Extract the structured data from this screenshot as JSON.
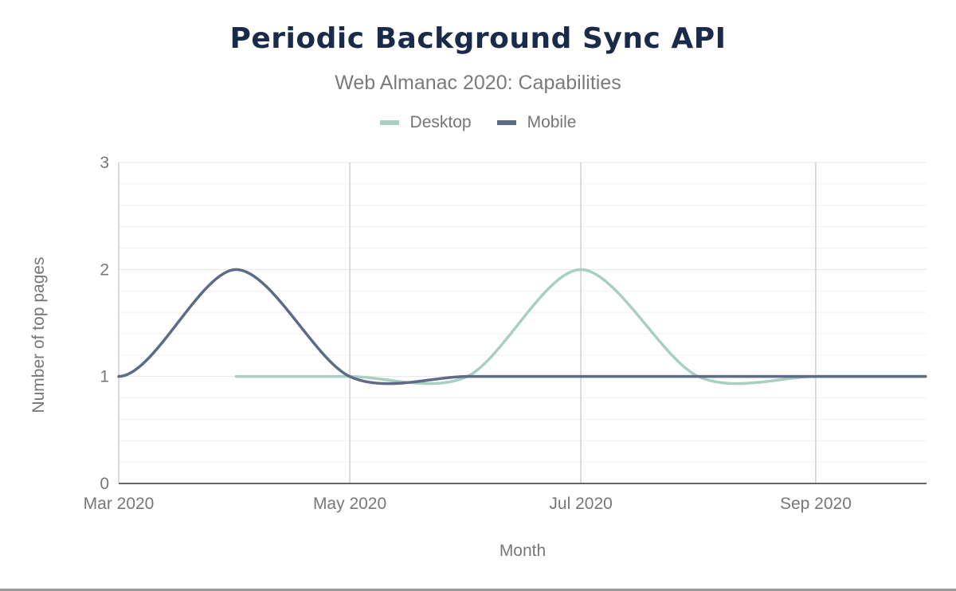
{
  "header": {
    "title": "Periodic Background Sync API",
    "subtitle": "Web Almanac 2020: Capabilities"
  },
  "colors": {
    "desktop": "#a8cfc0",
    "mobile": "#5d6b86",
    "title": "#1a2b49"
  },
  "chart_data": {
    "type": "line",
    "title": "Periodic Background Sync API",
    "subtitle": "Web Almanac 2020: Capabilities",
    "xlabel": "Month",
    "ylabel": "Number of top pages",
    "x_tick_labels": [
      "Mar 2020",
      "May 2020",
      "Jul 2020",
      "Sep 2020"
    ],
    "y_tick_labels": [
      "0",
      "1",
      "2",
      "3"
    ],
    "ylim": [
      0,
      3
    ],
    "xlim": [
      "2020-03-01",
      "2020-09-30"
    ],
    "smooth": true,
    "grid": true,
    "legend_position": "top-center",
    "series": [
      {
        "name": "Desktop",
        "color": "#a8cfc0",
        "x": [
          "2020-04-01",
          "2020-05-01",
          "2020-06-01",
          "2020-07-01",
          "2020-08-01",
          "2020-09-01",
          "2020-09-30"
        ],
        "values": [
          1,
          1,
          1,
          2,
          1,
          1,
          1
        ]
      },
      {
        "name": "Mobile",
        "color": "#5d6b86",
        "x": [
          "2020-03-01",
          "2020-04-01",
          "2020-05-01",
          "2020-06-01",
          "2020-07-01",
          "2020-08-01",
          "2020-09-01",
          "2020-09-30"
        ],
        "values": [
          1,
          2,
          1,
          1,
          1,
          1,
          1,
          1
        ]
      }
    ]
  }
}
